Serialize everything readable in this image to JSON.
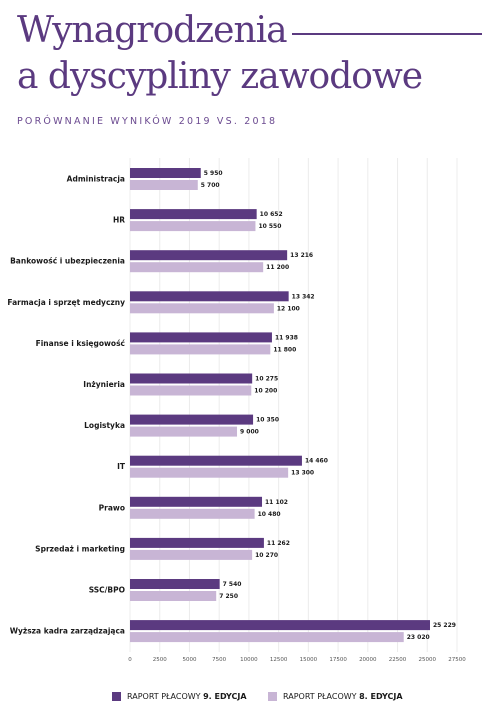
{
  "header": {
    "title_line1": "Wynagrodzenia",
    "title_line2": "a dyscypliny zawodowe",
    "subtitle": "PORÓWNANIE WYNIKÓW 2019 VS. 2018"
  },
  "legend": {
    "item1_text": "RAPORT PŁACOWY ",
    "item1_bold": "9. EDYCJA",
    "item2_text": "RAPORT PŁACOWY ",
    "item2_bold": "8. EDYCJA"
  },
  "chart_data": {
    "type": "bar",
    "orientation": "horizontal",
    "categories": [
      "Administracja",
      "HR",
      "Bankowość i ubezpieczenia",
      "Farmacja i sprzęt medyczny",
      "Finanse i księgowość",
      "Inżynieria",
      "Logistyka",
      "IT",
      "Prawo",
      "Sprzedaż i marketing",
      "SSC/BPO",
      "Wyższa kadra zarządzająca"
    ],
    "series": [
      {
        "name": "RAPORT PŁACOWY 9. EDYCJA",
        "color": "#5b3a80",
        "values": [
          5950,
          10652,
          13216,
          13342,
          11938,
          10275,
          10350,
          14460,
          11102,
          11262,
          7540,
          25229
        ],
        "labels": [
          "5 950",
          "10 652",
          "13 216",
          "13 342",
          "11 938",
          "10 275",
          "10 350",
          "14 460",
          "11 102",
          "11 262",
          "7 540",
          "25 229"
        ]
      },
      {
        "name": "RAPORT PŁACOWY 8. EDYCJA",
        "color": "#c8b5d5",
        "values": [
          5700,
          10550,
          11200,
          12100,
          11800,
          10200,
          9000,
          13300,
          10480,
          10270,
          7250,
          23020
        ],
        "labels": [
          "5 700",
          "10 550",
          "11 200",
          "12 100",
          "11 800",
          "10 200",
          "9 000",
          "13 300",
          "10 480",
          "10 270",
          "7 250",
          "23 020"
        ]
      }
    ],
    "xlim": [
      0,
      27500
    ],
    "xticks": [
      0,
      2500,
      5000,
      7500,
      10000,
      12500,
      15000,
      17500,
      20000,
      22500,
      25000,
      27500
    ],
    "xtick_labels": [
      "0",
      "2500",
      "5000",
      "7500",
      "10000",
      "12500",
      "15000",
      "17500",
      "20000",
      "22500",
      "25000",
      "27500"
    ],
    "grid": "vertical",
    "legend_position": "bottom"
  }
}
